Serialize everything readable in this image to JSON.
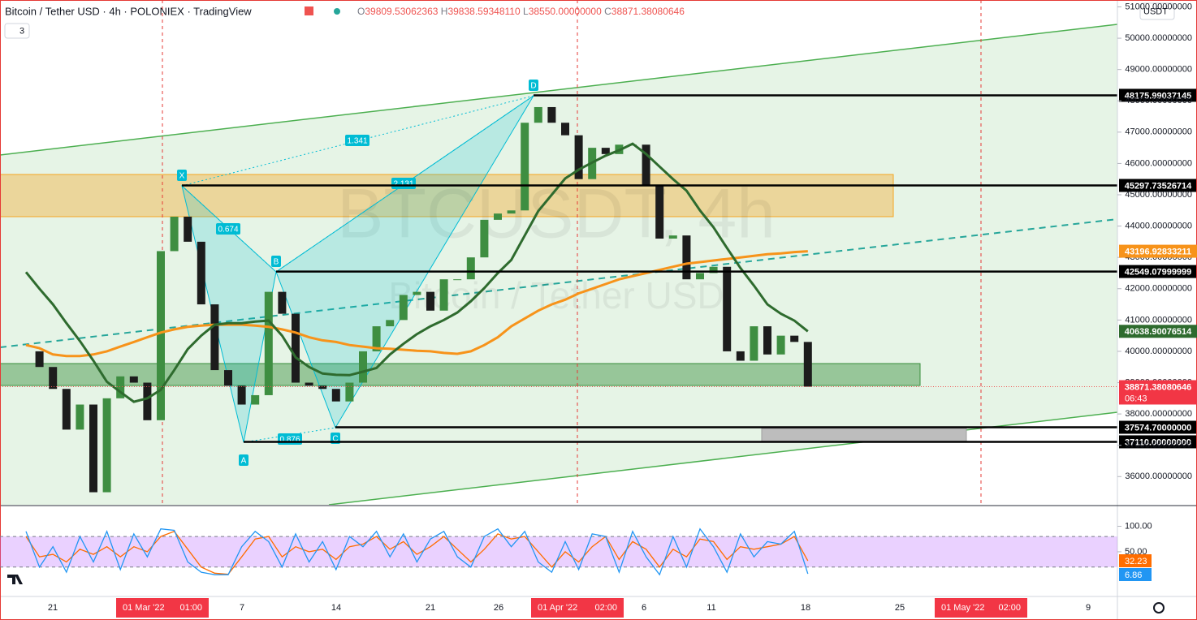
{
  "header": {
    "symbol": "Bitcoin / Tether USD · 4h · POLONIEX · TradingView",
    "ohlc": [
      {
        "key": "O",
        "value": "39809.53062363"
      },
      {
        "key": "H",
        "value": "39838.59348110"
      },
      {
        "key": "L",
        "value": "38550.00000000"
      },
      {
        "key": "C",
        "value": "38871.38080646"
      }
    ],
    "indicator_count": "3",
    "currency": "USDT"
  },
  "watermark": {
    "symbol": "BTCUSDT, 4h",
    "name": "Bitcoin / Tether USD"
  },
  "chart_data": {
    "type": "candlestick",
    "up_color": "#3e8e41",
    "down_color": "#1c1c1c",
    "closes": [
      40000,
      39500,
      38800,
      37500,
      38300,
      35500,
      38500,
      39200,
      39000,
      37800,
      43200,
      44300,
      43500,
      41500,
      39400,
      38900,
      38300,
      38600,
      41900,
      41200,
      39000,
      38900,
      38800,
      38400,
      39000,
      40000,
      40800,
      41000,
      41800,
      41900,
      41300,
      42300,
      42300,
      43000,
      44200,
      44400,
      44500,
      47300,
      47800,
      47300,
      46900,
      45500,
      46500,
      46300,
      46600,
      46600,
      45300,
      43600,
      43700,
      42300,
      42500,
      42700,
      40000,
      39700,
      40800,
      39900,
      40500,
      40300,
      38871.38080646
    ],
    "countdown": "06:43",
    "ma_fast": {
      "color": "#2e6b2e",
      "values": [
        42530,
        42000,
        41500,
        40900,
        40330,
        39700,
        39030,
        38700,
        38390,
        38500,
        38770,
        39400,
        40070,
        40500,
        40850,
        40900,
        40900,
        40950,
        40980,
        40500,
        39810,
        39500,
        39290,
        39250,
        39240,
        39350,
        39470,
        39900,
        40240,
        40550,
        40800,
        41000,
        41240,
        41600,
        42020,
        42500,
        42920,
        43700,
        44480,
        45000,
        45520,
        45800,
        46030,
        46250,
        46420,
        46630,
        46300,
        45900,
        45500,
        45130,
        44500,
        43960,
        43300,
        42660,
        42100,
        41500,
        41200,
        40980,
        40638.90076514
      ]
    },
    "ma_slow": {
      "color": "#f7931a",
      "values": [
        40200,
        40100,
        39900,
        39850,
        39850,
        39900,
        40000,
        40150,
        40300,
        40450,
        40600,
        40700,
        40780,
        40820,
        40850,
        40850,
        40850,
        40820,
        40780,
        40700,
        40600,
        40450,
        40350,
        40300,
        40200,
        40150,
        40100,
        40080,
        40050,
        40020,
        40000,
        39950,
        39920,
        40000,
        40200,
        40450,
        40800,
        41050,
        41300,
        41500,
        41650,
        41850,
        42000,
        42150,
        42300,
        42400,
        42500,
        42600,
        42700,
        42800,
        42850,
        42900,
        42950,
        43000,
        43050,
        43100,
        43130,
        43170,
        43196.92833211
      ]
    },
    "ylim": [
      35100,
      51220
    ],
    "yticks": [
      {
        "value": 36000,
        "label": "36000.00000000"
      },
      {
        "value": 37000,
        "label": "37000.00000000"
      },
      {
        "value": 38000,
        "label": "38000.00000000"
      },
      {
        "value": 39000,
        "label": "39000.00000000"
      },
      {
        "value": 40000,
        "label": "40000.00000000"
      },
      {
        "value": 41000,
        "label": "41000.00000000"
      },
      {
        "value": 42000,
        "label": "42000.00000000"
      },
      {
        "value": 43000,
        "label": "43000.00000000"
      },
      {
        "value": 44000,
        "label": "44000.00000000"
      },
      {
        "value": 45000,
        "label": "45000.00000000"
      },
      {
        "value": 46000,
        "label": "46000.00000000"
      },
      {
        "value": 47000,
        "label": "47000.00000000"
      },
      {
        "value": 48000,
        "label": "48000.00000000"
      },
      {
        "value": 49000,
        "label": "49000.00000000"
      },
      {
        "value": 50000,
        "label": "50000.00000000"
      },
      {
        "value": 51000,
        "label": "51000.00000000"
      }
    ],
    "levels": [
      {
        "value": 48175.99037145,
        "label": "48175.99037145"
      },
      {
        "value": 45297.73526714,
        "label": "45297.73526714"
      },
      {
        "value": 42549.07999999,
        "label": "42549.07999999"
      },
      {
        "value": 37574.7,
        "label": "37574.70000000"
      },
      {
        "value": 37110.0,
        "label": "37110.00000000"
      }
    ],
    "pattern_points": [
      "X",
      "A",
      "B",
      "C",
      "D"
    ],
    "pattern_ratios": [
      "1.341",
      "2.131",
      "0.674",
      "0.876"
    ],
    "time_labels": [
      {
        "text": "21"
      },
      {
        "date": "01 Mar '22",
        "time": "01:00"
      },
      {
        "text": "7"
      },
      {
        "text": "14"
      },
      {
        "text": "21"
      },
      {
        "text": "26"
      },
      {
        "date": "01 Apr '22",
        "time": "02:00"
      },
      {
        "text": "6"
      },
      {
        "text": "11"
      },
      {
        "text": "18"
      },
      {
        "text": "25"
      },
      {
        "date": "01 May '22",
        "time": "02:00"
      },
      {
        "text": "9"
      }
    ]
  },
  "oscillator": {
    "ylim": [
      -36,
      139
    ],
    "yticks": [
      {
        "value": 100,
        "label": "100.00"
      },
      {
        "value": 50,
        "label": "50.00"
      }
    ],
    "band": [
      20,
      80
    ],
    "k": {
      "color": "#2196f3",
      "values": [
        90,
        20,
        60,
        10,
        80,
        30,
        90,
        15,
        85,
        40,
        95,
        92,
        30,
        10,
        5,
        5,
        60,
        90,
        70,
        20,
        85,
        30,
        70,
        15,
        80,
        60,
        90,
        40,
        85,
        30,
        75,
        90,
        40,
        20,
        80,
        95,
        60,
        90,
        30,
        10,
        70,
        15,
        85,
        80,
        10,
        90,
        40,
        5,
        80,
        20,
        95,
        60,
        10,
        85,
        40,
        70,
        65,
        90,
        6.86
      ]
    },
    "d": {
      "color": "#ff6d00",
      "values": [
        80,
        40,
        45,
        30,
        55,
        45,
        60,
        40,
        60,
        50,
        80,
        90,
        55,
        20,
        8,
        6,
        40,
        75,
        80,
        40,
        60,
        50,
        55,
        35,
        60,
        65,
        80,
        55,
        70,
        45,
        60,
        80,
        55,
        30,
        55,
        85,
        75,
        80,
        50,
        20,
        50,
        30,
        60,
        80,
        35,
        70,
        55,
        20,
        55,
        40,
        75,
        70,
        35,
        60,
        55,
        60,
        65,
        80,
        32.23
      ]
    }
  }
}
